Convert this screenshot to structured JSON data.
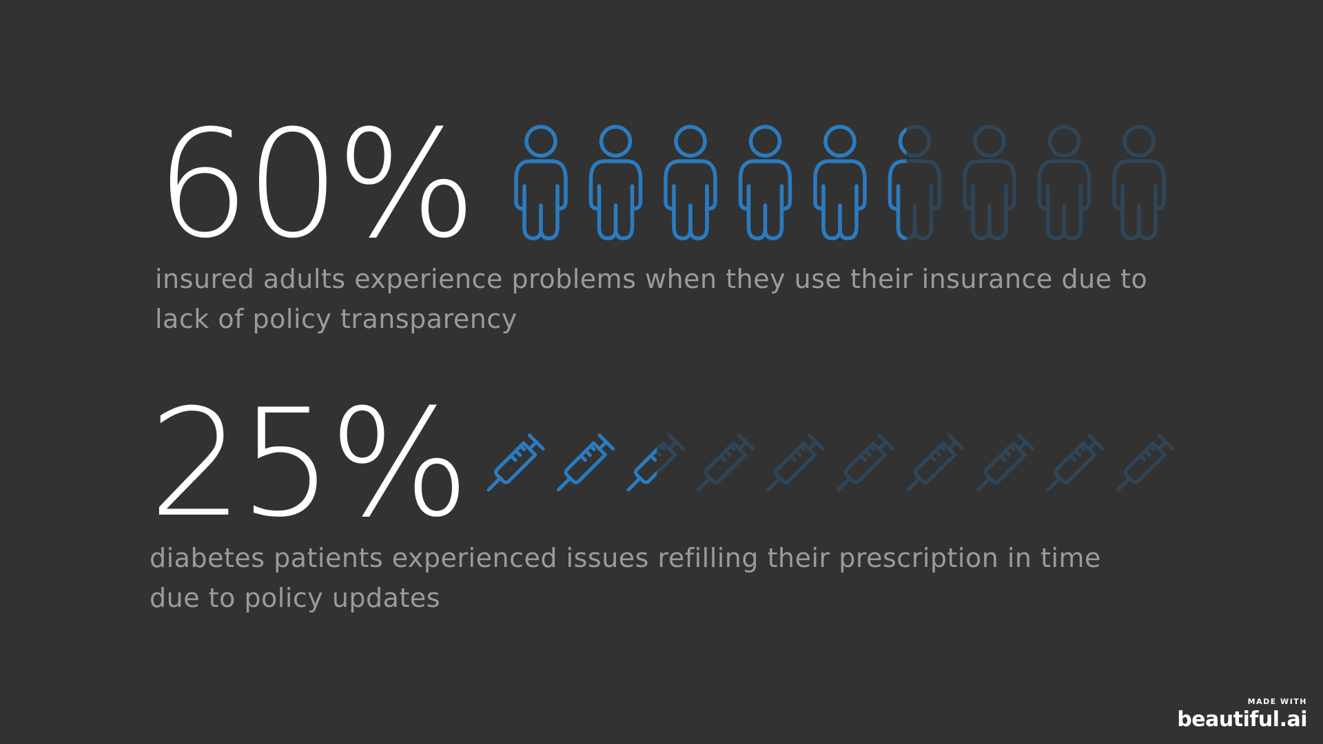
{
  "colors": {
    "background": "#323232",
    "accent": "#2b7bbf",
    "accent_dim": "#2f4558",
    "value_text": "#ffffff",
    "desc_text": "#9b9b9b"
  },
  "stats": [
    {
      "value": "60%",
      "fraction": 0.6,
      "icon": "person-icon",
      "icon_count": 9,
      "description": "insured adults experience problems when they use their insurance due to lack of policy transparency"
    },
    {
      "value": "25%",
      "fraction": 0.25,
      "icon": "syringe-icon",
      "icon_count": 10,
      "description": "diabetes patients experienced issues refilling their prescription in time due to policy updates"
    }
  ],
  "brand": {
    "made_with": "MADE WITH",
    "logo": "beautiful.ai"
  }
}
